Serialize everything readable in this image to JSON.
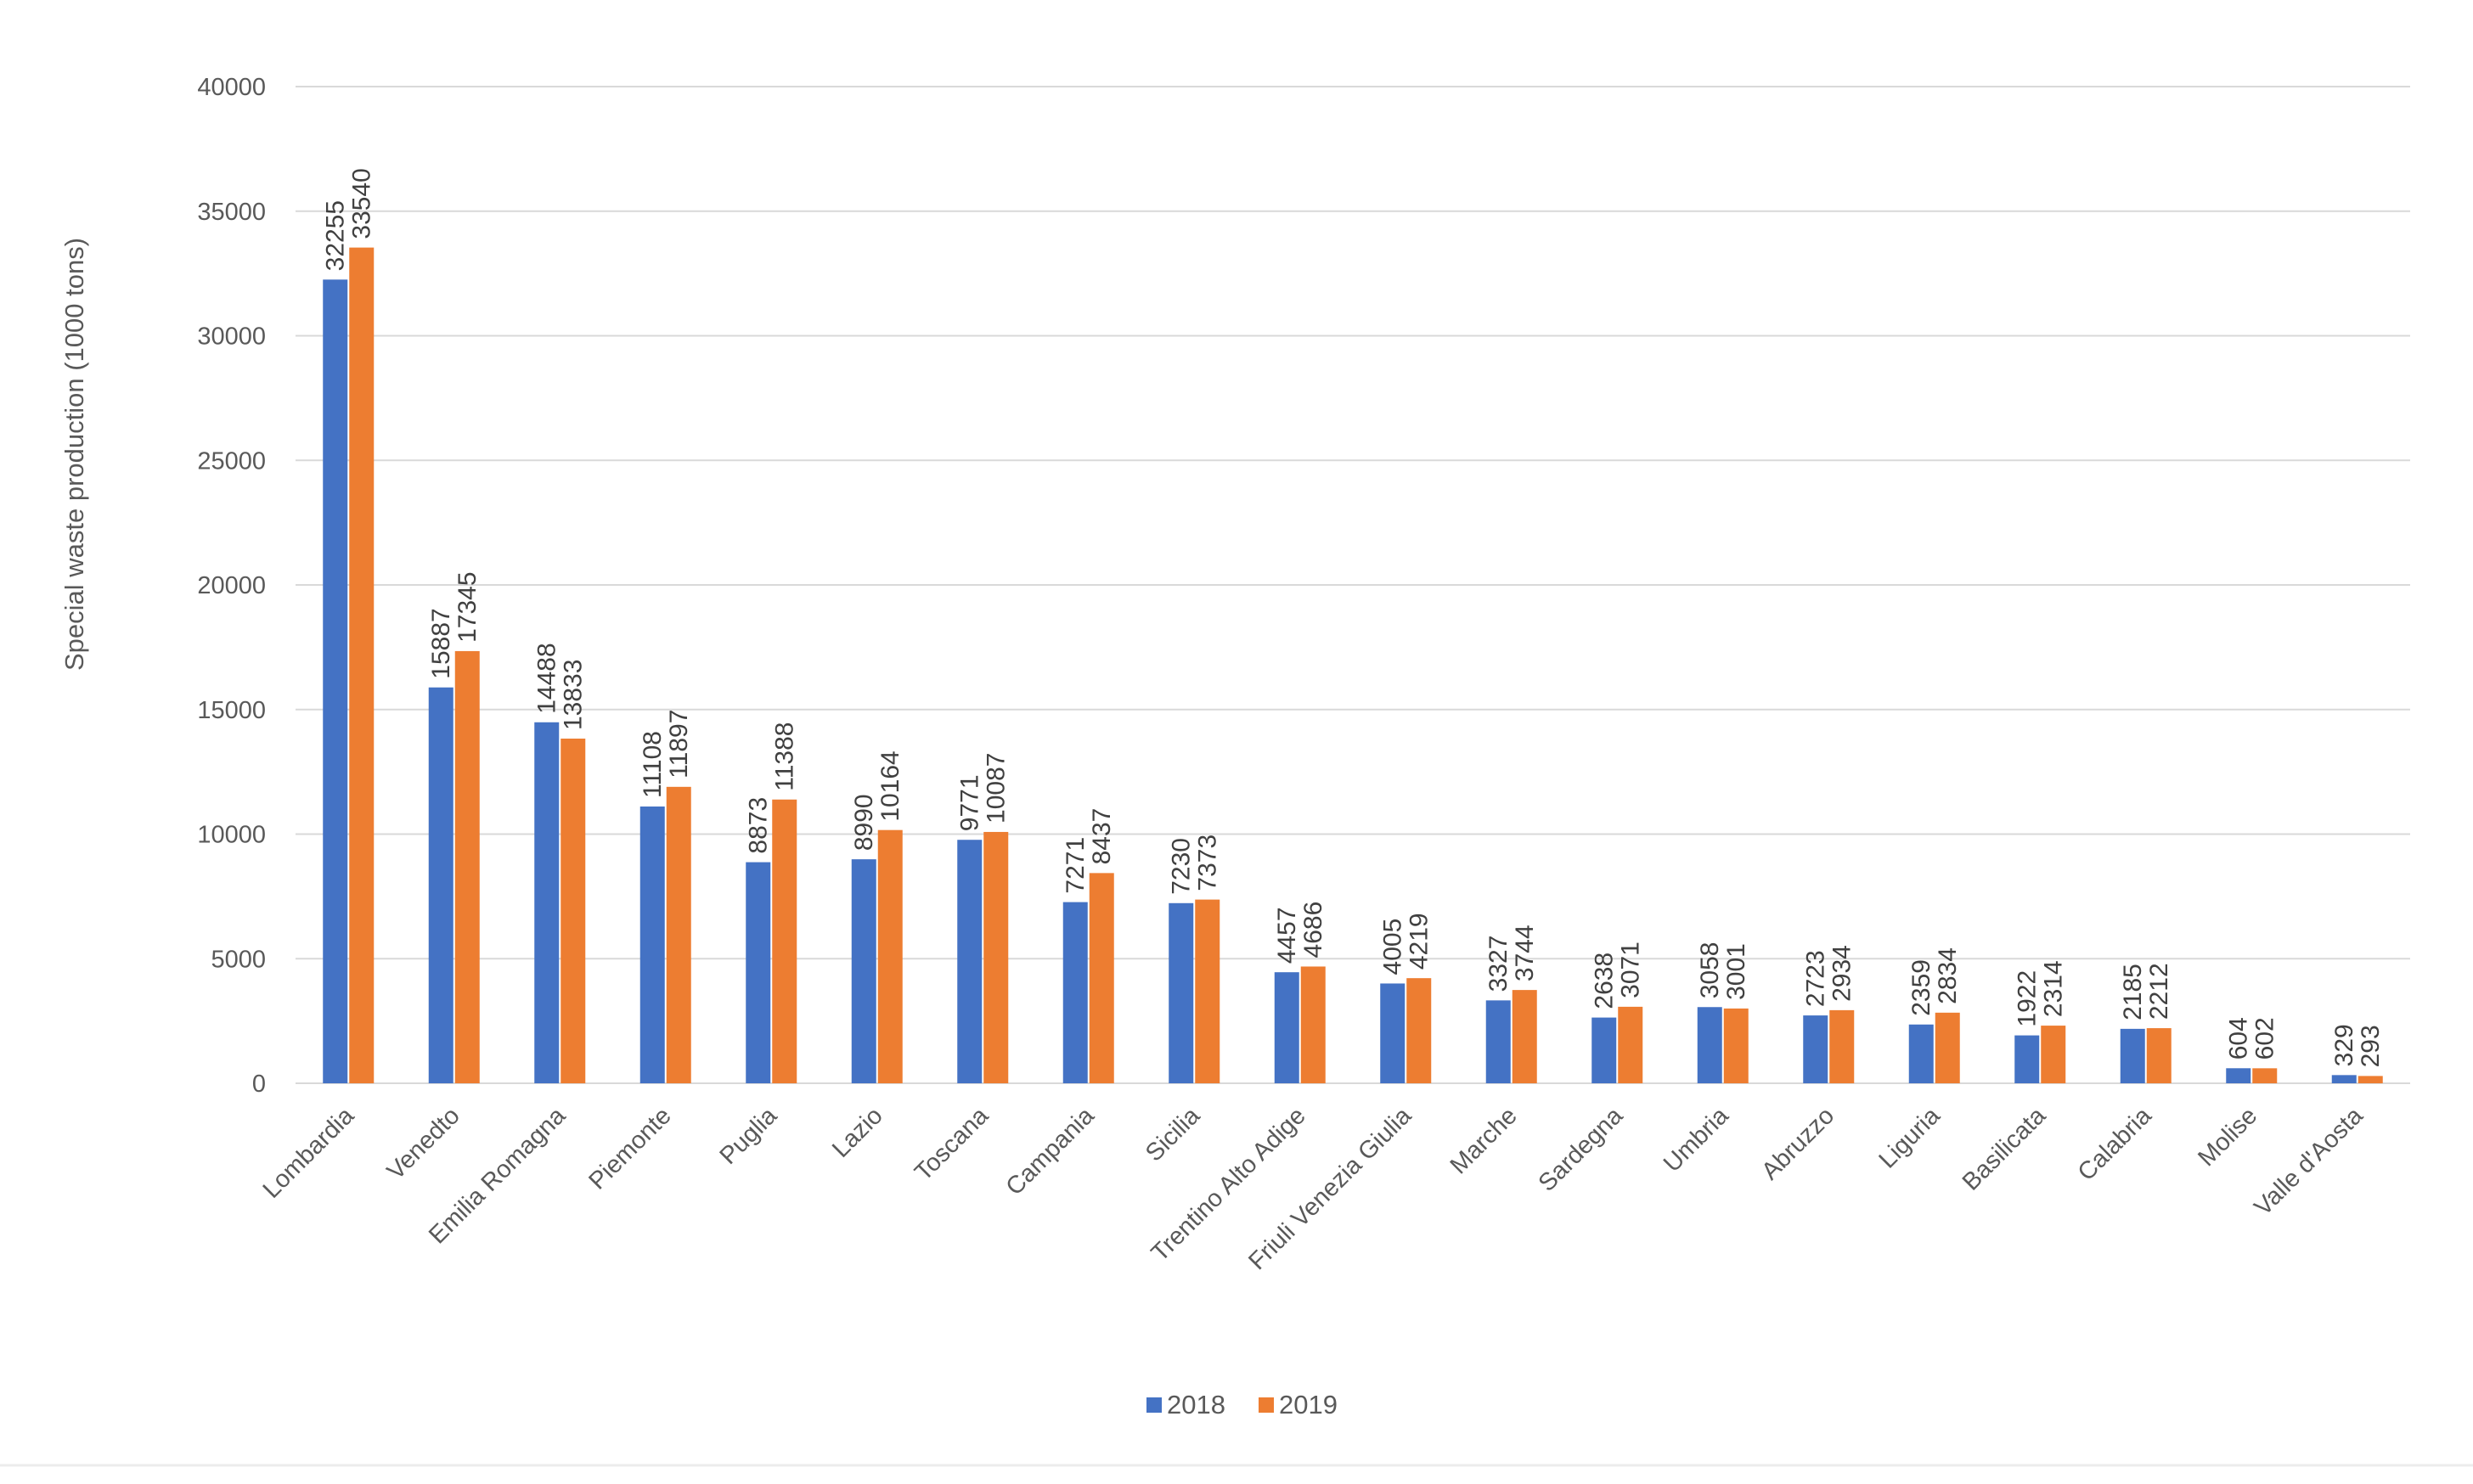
{
  "chart_data": {
    "type": "bar",
    "ylabel": "Special waste production (1000 tons)",
    "ylim": [
      0,
      40000
    ],
    "yticks": [
      0,
      5000,
      10000,
      15000,
      20000,
      25000,
      30000,
      35000,
      40000
    ],
    "grid": true,
    "legend_position": "bottom",
    "categories": [
      "Lombardia",
      "Venedto",
      "Emilia Romagna",
      "Piemonte",
      "Puglia",
      "Lazio",
      "Toscana",
      "Campania",
      "Sicilia",
      "Trentino Alto Adige",
      "Friuli Venezia Giulia",
      "Marche",
      "Sardegna",
      "Umbria",
      "Abruzzo",
      "Liguria",
      "Basilicata",
      "Calabria",
      "Molise",
      "Valle d'Aosta"
    ],
    "series": [
      {
        "name": "2018",
        "color": "#4472c4",
        "values": [
          32255,
          15887,
          14488,
          11108,
          8873,
          8990,
          9771,
          7271,
          7230,
          4457,
          4005,
          3327,
          2638,
          3058,
          2723,
          2359,
          1922,
          2185,
          604,
          329
        ]
      },
      {
        "name": "2019",
        "color": "#ed7d31",
        "values": [
          33540,
          17345,
          13833,
          11897,
          11388,
          10164,
          10087,
          8437,
          7373,
          4686,
          4219,
          3744,
          3071,
          3001,
          2934,
          2834,
          2314,
          2212,
          602,
          293
        ]
      }
    ]
  }
}
